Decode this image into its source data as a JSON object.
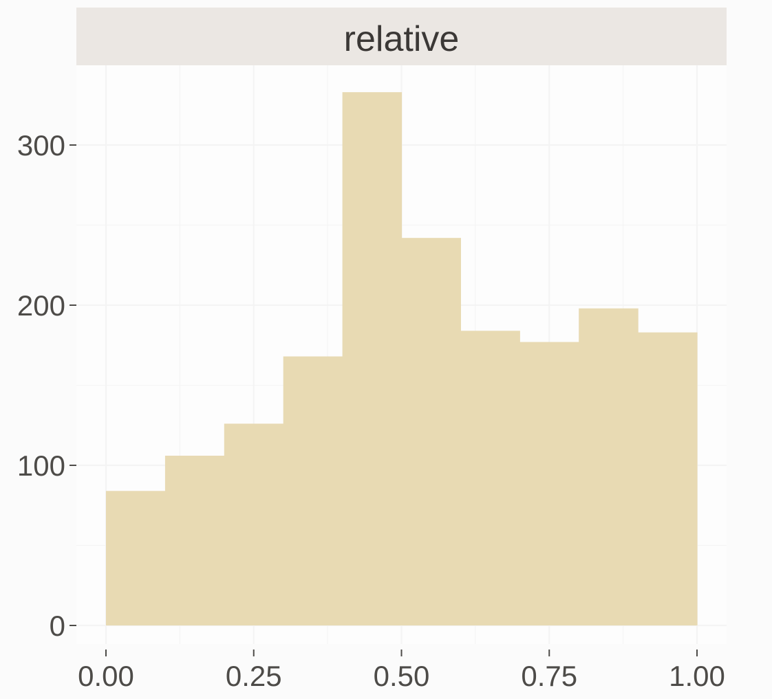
{
  "chart_data": {
    "type": "bar",
    "facet_label": "relative",
    "title": "",
    "xlabel": "",
    "ylabel": "",
    "bin_edges": [
      0.0,
      0.1,
      0.2,
      0.3,
      0.4,
      0.5,
      0.6,
      0.7,
      0.8,
      0.9,
      1.0
    ],
    "values": [
      84,
      106,
      126,
      168,
      333,
      242,
      184,
      177,
      198,
      183
    ],
    "xlim": [
      -0.05,
      1.05
    ],
    "ylim": [
      0,
      340
    ],
    "x_ticks": [
      {
        "value": 0.0,
        "label": "0.00"
      },
      {
        "value": 0.25,
        "label": "0.25"
      },
      {
        "value": 0.5,
        "label": "0.50"
      },
      {
        "value": 0.75,
        "label": "0.75"
      },
      {
        "value": 1.0,
        "label": "1.00"
      }
    ],
    "y_ticks": [
      {
        "value": 0,
        "label": "0"
      },
      {
        "value": 100,
        "label": "100"
      },
      {
        "value": 200,
        "label": "200"
      },
      {
        "value": 300,
        "label": "300"
      }
    ],
    "grid": true,
    "legend": "none",
    "colors": {
      "bar": "#e8dab3",
      "panel": "#fdfdfd",
      "strip": "#ebe7e3",
      "grid": "#f4f4f4",
      "text": "#3b3836"
    }
  }
}
